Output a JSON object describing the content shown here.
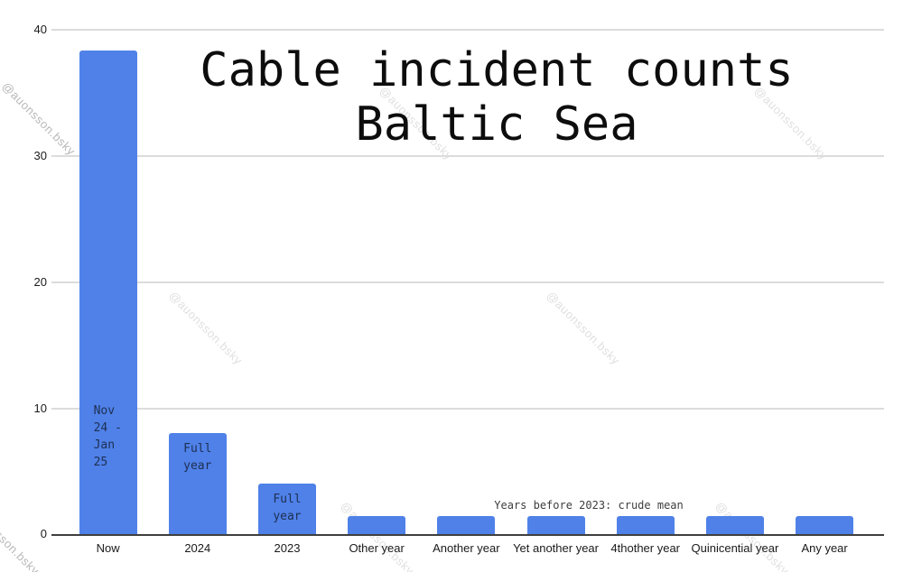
{
  "watermark": {
    "text": "@auonsson.bsky"
  },
  "chart_data": {
    "type": "bar",
    "title": "Cable incident counts Baltic Sea",
    "title_lines": [
      "Cable incident counts",
      "Baltic Sea"
    ],
    "categories": [
      "Now",
      "2024",
      "2023",
      "Other year",
      "Another year",
      "Yet another year",
      "4thother year",
      "Quinicential year",
      "Any year"
    ],
    "values": [
      38.3,
      8,
      4,
      1.4,
      1.4,
      1.4,
      1.4,
      1.4,
      1.4
    ],
    "bar_labels": [
      "Nov 24 -\nJan 25",
      "Full\nyear",
      "Full\nyear",
      "",
      "",
      "",
      "",
      "",
      ""
    ],
    "annotation": "Years before 2023: crude mean",
    "xlabel": "",
    "ylabel": "",
    "yaxis": {
      "ticks_top_to_bottom": [
        "40",
        "30",
        "20",
        "10",
        "0"
      ],
      "ylim": [
        0,
        40
      ],
      "grid": true
    },
    "legend": "none",
    "colors": {
      "bar": "#4f81e8",
      "bar_label_text": "#1e2f52",
      "gridline": "#dcdcdc",
      "axis_line": "#3f3f3f",
      "watermark": "#c4c4c4"
    }
  }
}
